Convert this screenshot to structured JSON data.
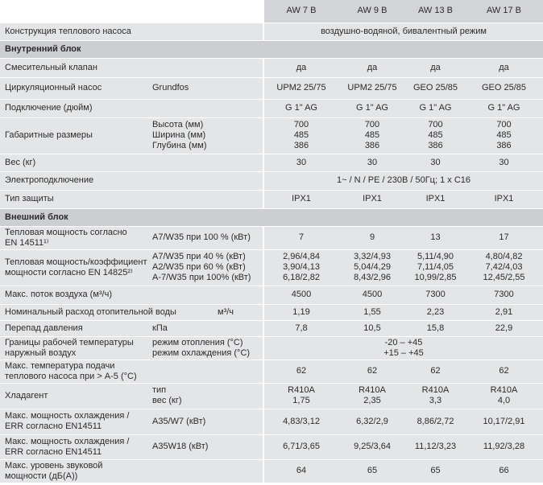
{
  "header": {
    "models": [
      "AW 7 B",
      "AW 9 B",
      "AW 13 B",
      "AW 17 B"
    ]
  },
  "rows": [
    {
      "label": "Конструкция теплового насоса",
      "span": "воздушно-водяной, бивалентный режим"
    },
    {
      "section": "Внутренний блок"
    },
    {
      "label": "Смесительный клапан",
      "values": [
        "да",
        "да",
        "да",
        "да"
      ]
    },
    {
      "label": "Циркуляционный насос",
      "sub": "Grundfos",
      "values": [
        "UPM2 25/75",
        "UPM2 25/75",
        "GEO 25/85",
        "GEO 25/85"
      ]
    },
    {
      "label": "Подключение (дюйм)",
      "values": [
        "G 1\" AG",
        "G 1\" AG",
        "G 1\" AG",
        "G 1\" AG"
      ]
    },
    {
      "label": "Габаритные размеры",
      "sub": [
        "Высота (мм)",
        "Ширина (мм)",
        "Глубина (мм)"
      ],
      "values": [
        [
          "700",
          "485",
          "386"
        ],
        [
          "700",
          "485",
          "386"
        ],
        [
          "700",
          "485",
          "386"
        ],
        [
          "700",
          "485",
          "386"
        ]
      ]
    },
    {
      "label": "Вес (кг)",
      "values": [
        "30",
        "30",
        "30",
        "30"
      ]
    },
    {
      "label": "Электроподключение",
      "span": "1~ / N / PE / 230B / 50Гц; 1 x C16"
    },
    {
      "label": "Тип защиты",
      "values": [
        "IPX1",
        "IPX1",
        "IPX1",
        "IPX1"
      ]
    },
    {
      "section": "Внешний блок"
    },
    {
      "label": [
        "Тепловая мощность согласно",
        "EN 14511¹⁾"
      ],
      "sub": "A7/W35 при 100 % (кВт)",
      "values": [
        "7",
        "9",
        "13",
        "17"
      ]
    },
    {
      "label": [
        "Тепловая мощность/коэффициент",
        "мощности согласно EN 14825²⁾"
      ],
      "sub": [
        "A7/W35 при 40 % (кВт)",
        "A2/W35 при 60 % (кВт)",
        "A-7/W35 при 100% (кВт)"
      ],
      "values": [
        [
          "2,96/4,84",
          "3,90/4,13",
          "6,18/2,82"
        ],
        [
          "3,32/4,93",
          "5,04/4,29",
          "8,43/2,96"
        ],
        [
          "5,11/4,90",
          "7,11/4,05",
          "10,99/2,85"
        ],
        [
          "4,80/4,82",
          "7,42/4,03",
          "12,45/2,55"
        ]
      ]
    },
    {
      "label": "Макс. поток воздуха (м³/ч)",
      "values": [
        "4500",
        "4500",
        "7300",
        "7300"
      ]
    },
    {
      "label": "Номинальный расход отопительной воды",
      "sub": "м³/ч",
      "values": [
        "1,19",
        "1,55",
        "2,23",
        "2,91"
      ]
    },
    {
      "label": "Перепад давления",
      "sub": "кПа",
      "values": [
        "7,8",
        "10,5",
        "15,8",
        "22,9"
      ]
    },
    {
      "label": [
        "Границы рабочей температуры",
        "наружный воздух"
      ],
      "sub": [
        "режим отопления (°C)",
        "режим охлаждения (°C)"
      ],
      "span": [
        "-20 – +45",
        "+15 – +45"
      ]
    },
    {
      "label": [
        "Макс. температура подачи",
        "теплового насоса при > А-5 (°C)"
      ],
      "values": [
        "62",
        "62",
        "62",
        "62"
      ]
    },
    {
      "label": "Хладагент",
      "sub": [
        "тип",
        "вес (кг)"
      ],
      "values": [
        [
          "R410A",
          "1,75"
        ],
        [
          "R410A",
          "2,35"
        ],
        [
          "R410A",
          "3,3"
        ],
        [
          "R410A",
          "4,0"
        ]
      ]
    },
    {
      "label": [
        "Макс. мощность охлаждения /",
        "ERR согласно EN14511"
      ],
      "sub": "A35/W7 (кВт)",
      "values": [
        "4,83/3,12",
        "6,32/2,9",
        "8,86/2,72",
        "10,17/2,91"
      ]
    },
    {
      "label": [
        "Макс. мощность охлаждения /",
        "ERR согласно EN14511"
      ],
      "sub": "A35W18 (кВт)",
      "values": [
        "6,71/3,65",
        "9,25/3,64",
        "11,12/3,23",
        "11,92/3,28"
      ]
    },
    {
      "label": [
        "Макс. уровень звуковой",
        "мощности (дБ(А))"
      ],
      "values": [
        "64",
        "65",
        "65",
        "66"
      ]
    }
  ]
}
